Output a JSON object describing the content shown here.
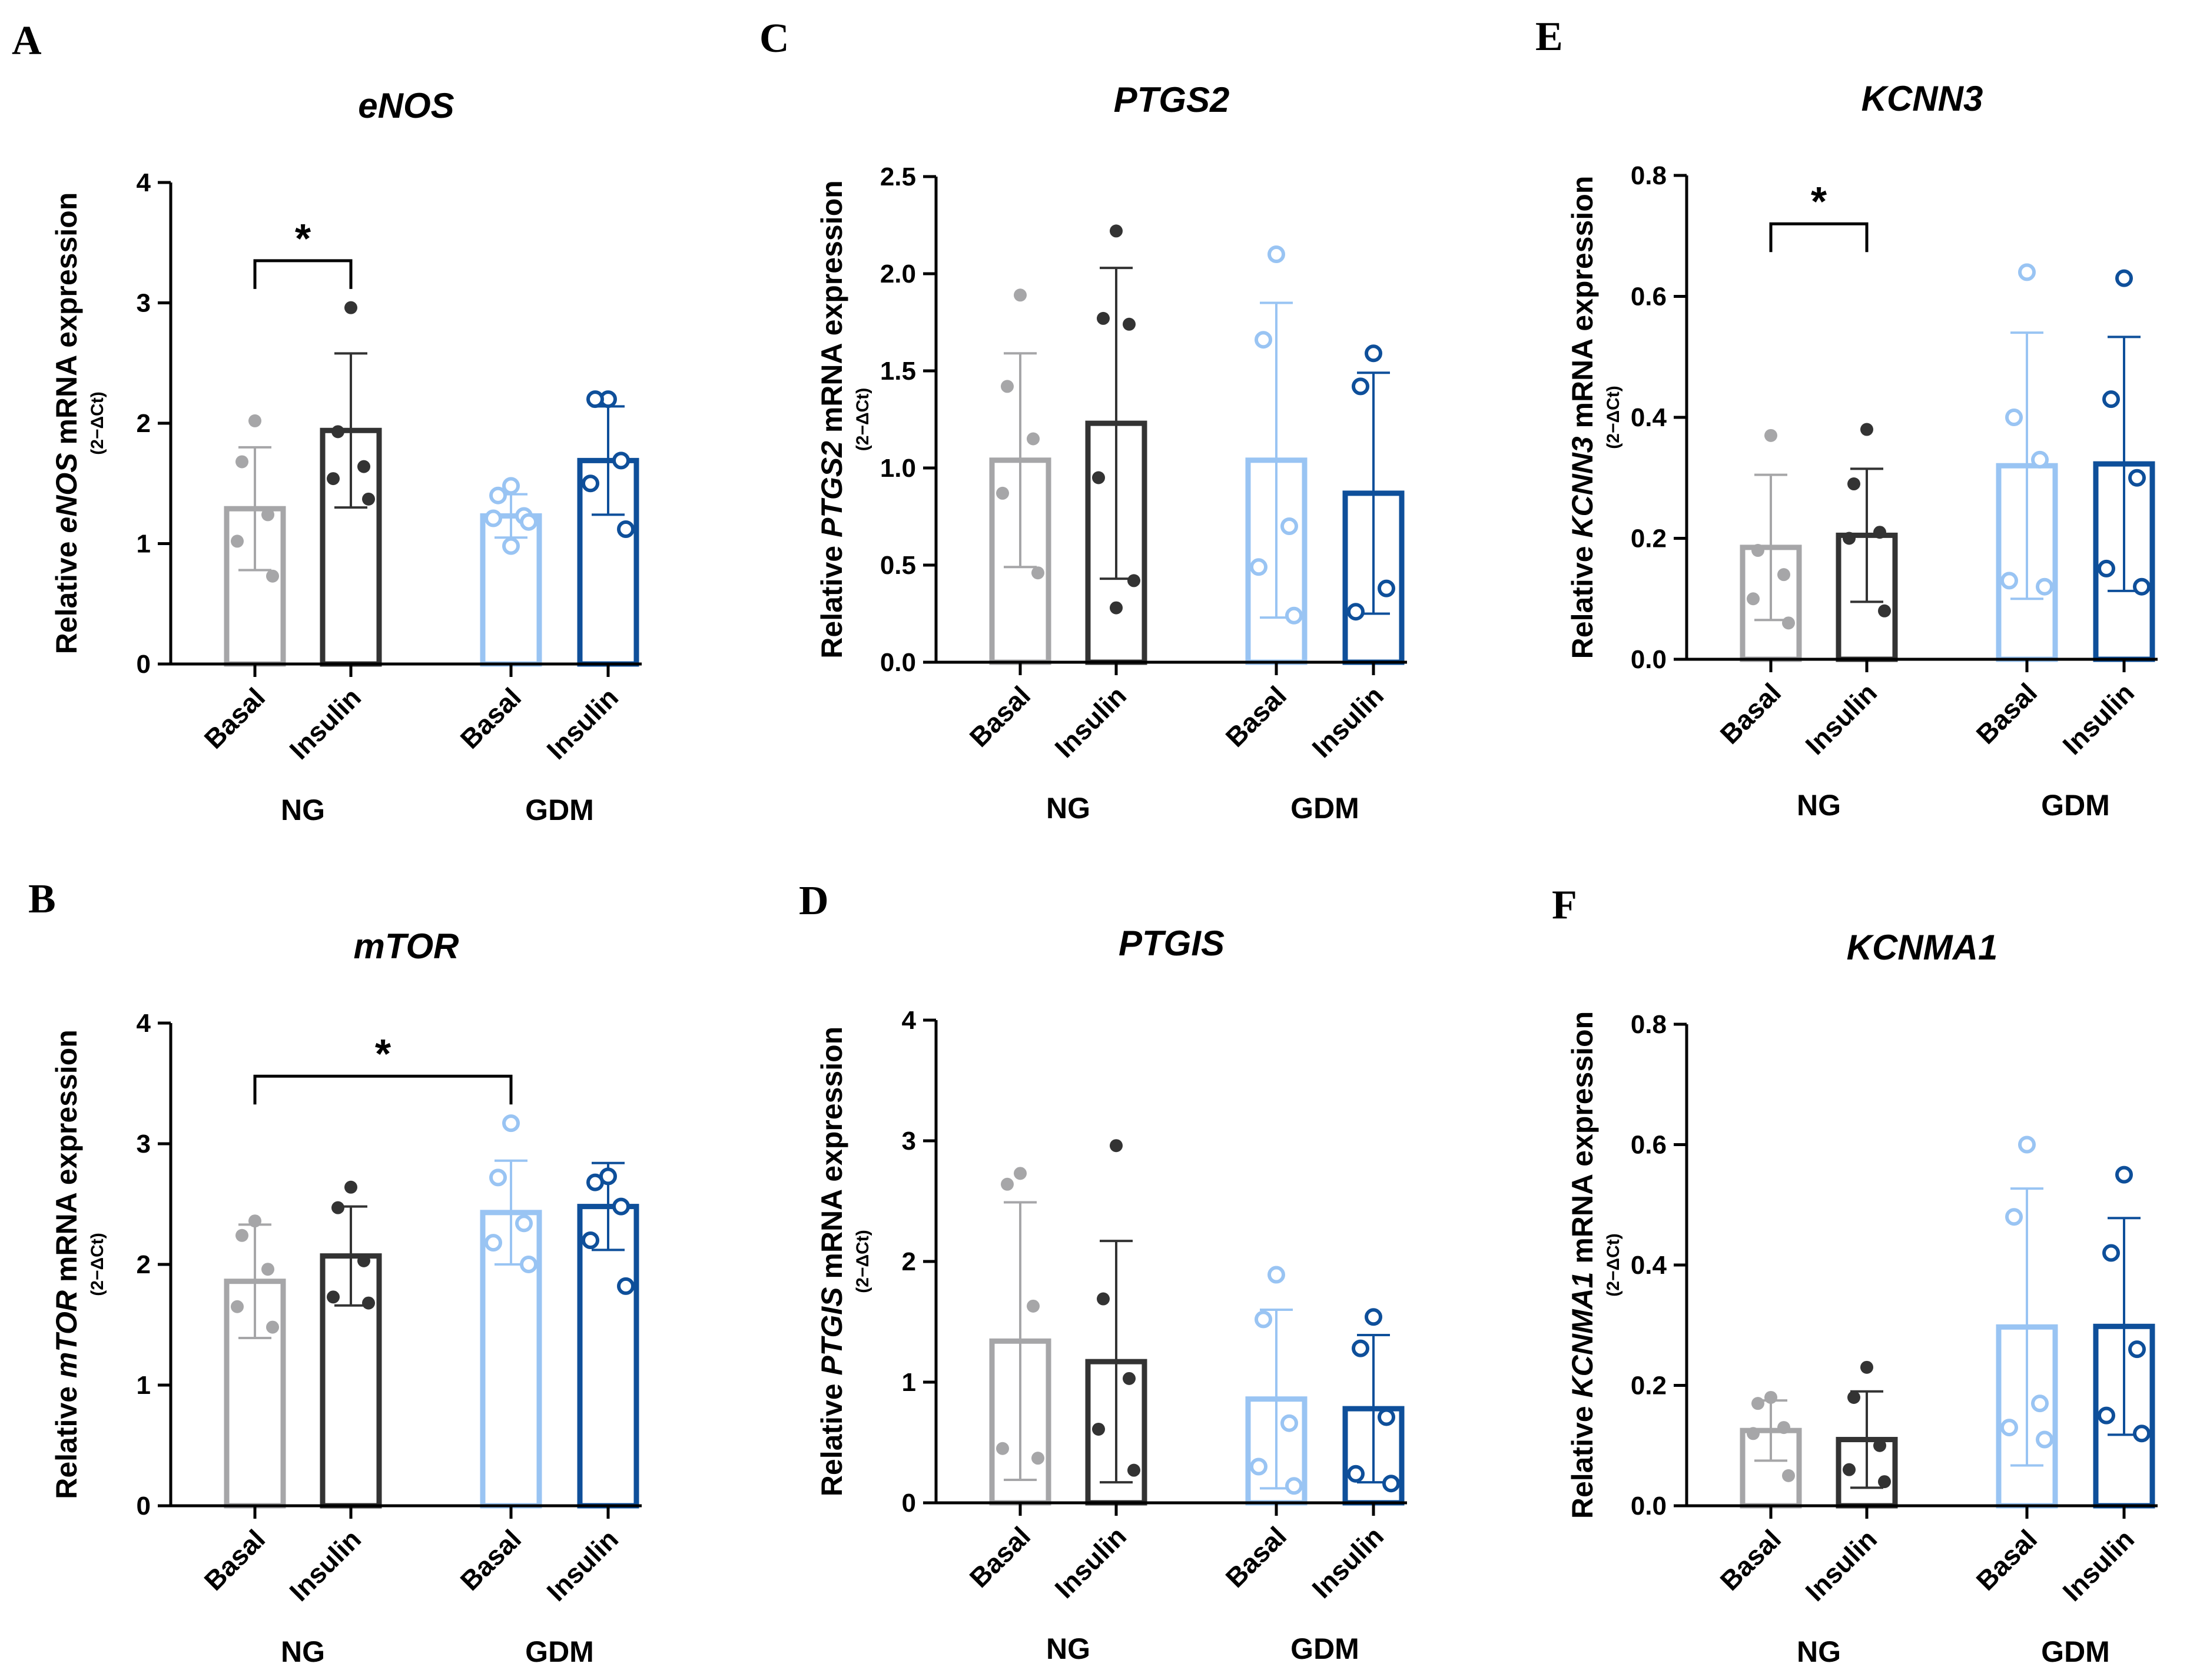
{
  "colors": {
    "ng_basal": "#a6a6a8",
    "ng_insulin": "#333333",
    "gdm_basal": "#99c4f3",
    "gdm_insulin": "#0e4f9a"
  },
  "chart_data": [
    {
      "panel": "A",
      "type": "bar",
      "title": "eNOS",
      "ylabel": {
        "pre": "Relative ",
        "gene": "eNOS",
        "post": " mRNA expression",
        "sub": "(2−ΔCt)"
      },
      "ylim": [
        0,
        4
      ],
      "ticks": [
        "0",
        "1",
        "2",
        "3",
        "4"
      ],
      "categories": [
        "Basal",
        "Insulin",
        "Basal",
        "Insulin"
      ],
      "groups": [
        "NG",
        "GDM"
      ],
      "means": [
        1.29,
        1.94,
        1.23,
        1.69
      ],
      "sd": [
        0.51,
        0.64,
        0.18,
        0.45
      ],
      "points": [
        [
          2.02,
          1.68,
          1.24,
          1.02,
          0.73
        ],
        [
          2.96,
          1.93,
          1.64,
          1.54,
          1.37
        ],
        [
          1.48,
          1.4,
          1.23,
          1.21,
          1.18,
          0.98
        ],
        [
          2.2,
          2.2,
          1.69,
          1.5,
          1.12
        ]
      ],
      "significance": [
        {
          "from": 0,
          "to": 1,
          "label": "*",
          "y": 3.35
        }
      ]
    },
    {
      "panel": "B",
      "type": "bar",
      "title": "mTOR",
      "ylabel": {
        "pre": "Relative ",
        "gene": "mTOR",
        "post": " mRNA expression",
        "sub": "(2−ΔCt)"
      },
      "ylim": [
        0,
        4
      ],
      "ticks": [
        "0",
        "1",
        "2",
        "3",
        "4"
      ],
      "categories": [
        "Basal",
        "Insulin",
        "Basal",
        "Insulin"
      ],
      "groups": [
        "NG",
        "GDM"
      ],
      "means": [
        1.86,
        2.07,
        2.43,
        2.48
      ],
      "sd": [
        0.47,
        0.41,
        0.43,
        0.36
      ],
      "points": [
        [
          2.36,
          2.24,
          1.96,
          1.65,
          1.48
        ],
        [
          2.64,
          2.47,
          2.03,
          1.73,
          1.68
        ],
        [
          3.17,
          2.72,
          2.34,
          2.18,
          2.0
        ],
        [
          2.73,
          2.68,
          2.48,
          2.2,
          1.82
        ]
      ],
      "significance": [
        {
          "from": 0,
          "to": 2,
          "label": "*",
          "y": 3.56
        }
      ]
    },
    {
      "panel": "C",
      "type": "bar",
      "title": "PTGS2",
      "ylabel": {
        "pre": "Relative ",
        "gene": "PTGS2",
        "post": " mRNA expression",
        "sub": "(2−ΔCt)"
      },
      "ylim": [
        0,
        2.5
      ],
      "ticks": [
        "0.0",
        "0.5",
        "1.0",
        "1.5",
        "2.0",
        "2.5"
      ],
      "categories": [
        "Basal",
        "Insulin",
        "Basal",
        "Insulin"
      ],
      "groups": [
        "NG",
        "GDM"
      ],
      "means": [
        1.04,
        1.23,
        1.04,
        0.87
      ],
      "sd": [
        0.55,
        0.8,
        0.81,
        0.62
      ],
      "points": [
        [
          1.89,
          1.42,
          1.15,
          0.87,
          0.46
        ],
        [
          2.22,
          1.77,
          1.74,
          0.95,
          0.42,
          0.28
        ],
        [
          2.1,
          1.66,
          0.7,
          0.49,
          0.24
        ],
        [
          1.59,
          1.42,
          0.38,
          0.26
        ]
      ],
      "significance": []
    },
    {
      "panel": "D",
      "type": "bar",
      "title": "PTGIS",
      "ylabel": {
        "pre": "Relative ",
        "gene": "PTGIS",
        "post": " mRNA expression",
        "sub": "(2−ΔCt)"
      },
      "ylim": [
        0,
        4
      ],
      "ticks": [
        "0",
        "1",
        "2",
        "3",
        "4"
      ],
      "categories": [
        "Basal",
        "Insulin",
        "Basal",
        "Insulin"
      ],
      "groups": [
        "NG",
        "GDM"
      ],
      "means": [
        1.34,
        1.17,
        0.86,
        0.78
      ],
      "sd": [
        1.15,
        1.0,
        0.74,
        0.61
      ],
      "points": [
        [
          2.73,
          2.64,
          1.63,
          0.45,
          0.37
        ],
        [
          2.96,
          1.69,
          1.03,
          0.61,
          0.27
        ],
        [
          1.89,
          1.52,
          0.66,
          0.3,
          0.14
        ],
        [
          1.54,
          1.28,
          0.71,
          0.24,
          0.16
        ]
      ],
      "significance": []
    },
    {
      "panel": "E",
      "type": "bar",
      "title": "KCNN3",
      "ylabel": {
        "pre": "Relative ",
        "gene": "KCNN3",
        "post": " mRNA expression",
        "sub": "(2−ΔCt)"
      },
      "ylim": [
        0,
        0.8
      ],
      "ticks": [
        "0.0",
        "0.2",
        "0.4",
        "0.6",
        "0.8"
      ],
      "categories": [
        "Basal",
        "Insulin",
        "Basal",
        "Insulin"
      ],
      "groups": [
        "NG",
        "GDM"
      ],
      "means": [
        0.185,
        0.205,
        0.32,
        0.323
      ],
      "sd": [
        0.12,
        0.11,
        0.22,
        0.21
      ],
      "points": [
        [
          0.37,
          0.18,
          0.14,
          0.1,
          0.06
        ],
        [
          0.38,
          0.29,
          0.21,
          0.2,
          0.08
        ],
        [
          0.64,
          0.4,
          0.33,
          0.13,
          0.12
        ],
        [
          0.63,
          0.43,
          0.3,
          0.15,
          0.12
        ]
      ],
      "significance": [
        {
          "from": 0,
          "to": 1,
          "label": "*",
          "y": 0.72
        }
      ]
    },
    {
      "panel": "F",
      "type": "bar",
      "title": "KCNMA1",
      "ylabel": {
        "pre": "Relative ",
        "gene": "KCNMA1",
        "post": " mRNA expression",
        "sub": "(2−ΔCt)"
      },
      "ylim": [
        0,
        0.8
      ],
      "ticks": [
        "0.0",
        "0.2",
        "0.4",
        "0.6",
        "0.8"
      ],
      "categories": [
        "Basal",
        "Insulin",
        "Basal",
        "Insulin"
      ],
      "groups": [
        "NG",
        "GDM"
      ],
      "means": [
        0.125,
        0.11,
        0.297,
        0.298
      ],
      "sd": [
        0.05,
        0.08,
        0.23,
        0.18
      ],
      "points": [
        [
          0.18,
          0.17,
          0.13,
          0.12,
          0.05
        ],
        [
          0.23,
          0.18,
          0.1,
          0.06,
          0.04
        ],
        [
          0.6,
          0.48,
          0.17,
          0.13,
          0.11
        ],
        [
          0.55,
          0.42,
          0.26,
          0.15,
          0.12
        ]
      ],
      "significance": []
    }
  ]
}
